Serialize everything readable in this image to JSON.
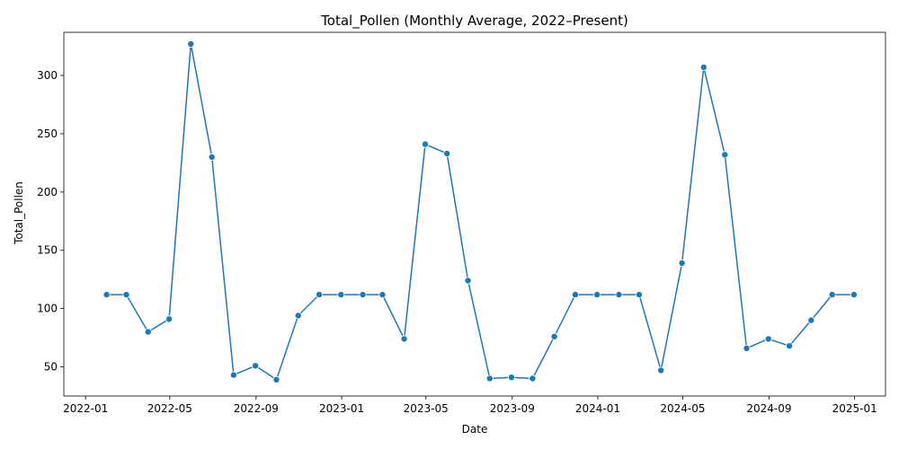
{
  "chart_data": {
    "type": "line",
    "title": "Total_Pollen (Monthly Average, 2022–Present)",
    "xlabel": "Date",
    "ylabel": "Total_Pollen",
    "ylim": [
      25,
      337
    ],
    "grid": false,
    "line_color": "#1f77b4",
    "marker": "circle",
    "x_ticks": [
      "2022-01",
      "2022-05",
      "2022-09",
      "2023-01",
      "2023-05",
      "2023-09",
      "2024-01",
      "2024-05",
      "2024-09",
      "2025-01"
    ],
    "y_ticks": [
      50,
      100,
      150,
      200,
      250,
      300
    ],
    "series": [
      {
        "x": [
          "2022-01-31",
          "2022-02-28",
          "2022-03-31",
          "2022-04-30",
          "2022-05-31",
          "2022-06-30",
          "2022-07-31",
          "2022-08-31",
          "2022-09-30",
          "2022-10-31",
          "2022-11-30",
          "2022-12-31",
          "2023-01-31",
          "2023-02-28",
          "2023-03-31",
          "2023-04-30",
          "2023-05-31",
          "2023-06-30",
          "2023-07-31",
          "2023-08-31",
          "2023-09-30",
          "2023-10-31",
          "2023-11-30",
          "2023-12-31",
          "2024-01-31",
          "2024-02-29",
          "2024-03-31",
          "2024-04-30",
          "2024-05-31",
          "2024-06-30",
          "2024-07-31",
          "2024-08-31",
          "2024-09-30",
          "2024-10-31",
          "2024-11-30",
          "2024-12-31"
        ],
        "values": [
          112,
          112,
          80,
          91,
          327,
          230,
          43,
          51,
          39,
          94,
          112,
          112,
          112,
          112,
          74,
          241,
          233,
          124,
          40,
          41,
          40,
          76,
          112,
          112,
          112,
          112,
          47,
          139,
          307,
          232,
          66,
          74,
          68,
          90,
          112,
          112
        ]
      }
    ]
  }
}
